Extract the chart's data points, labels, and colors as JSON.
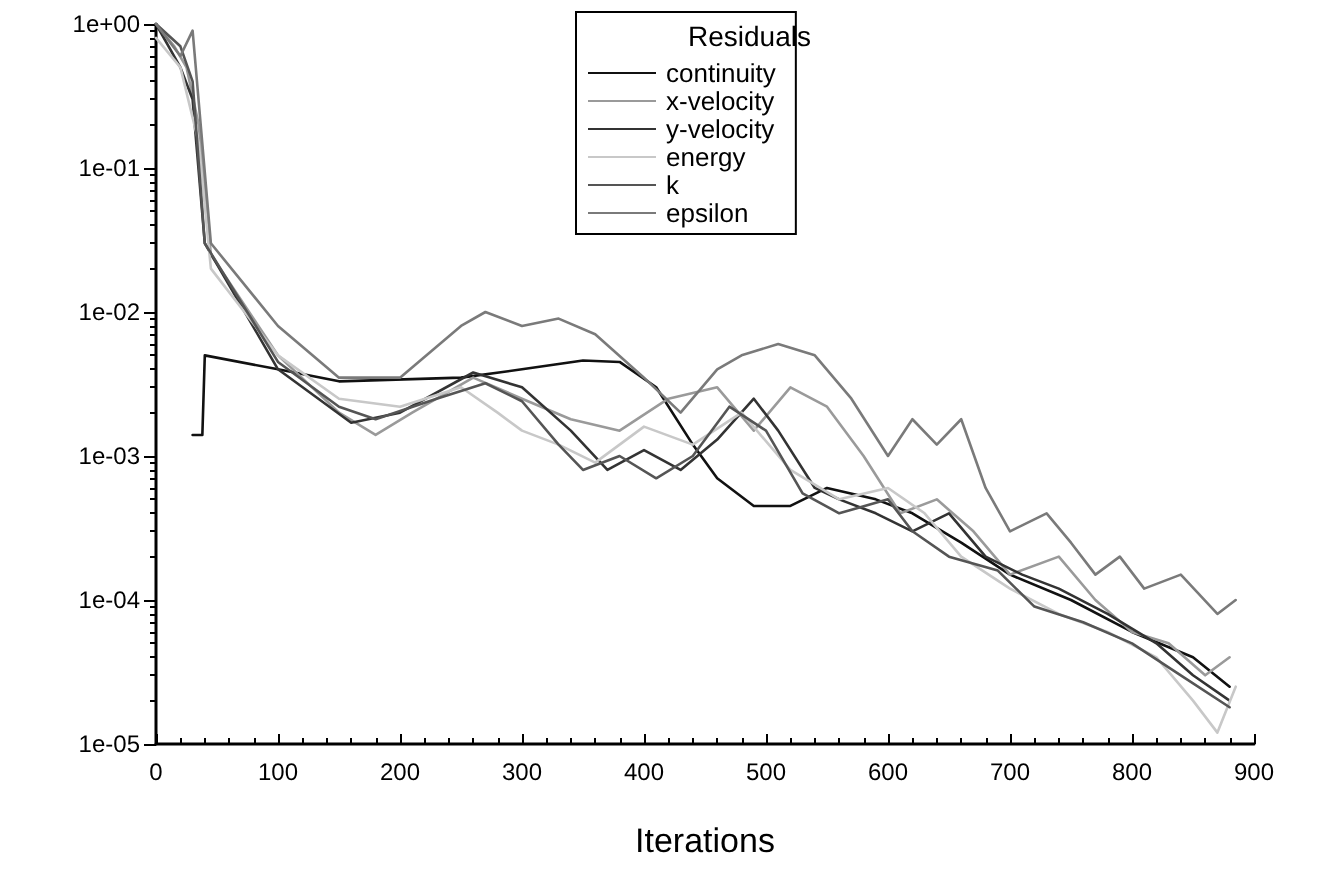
{
  "chart_data": {
    "type": "line",
    "xlabel": "Iterations",
    "legend_title": "Residuals",
    "legend": "top",
    "grid": false,
    "marker": "none",
    "log": "y",
    "xlim": [
      0,
      900
    ],
    "xticks": [
      0,
      100,
      200,
      300,
      400,
      500,
      600,
      700,
      800,
      900
    ],
    "ylim": [
      1e-05,
      1
    ],
    "yticks": [
      {
        "value": 1e-05,
        "label": "1e-05"
      },
      {
        "value": 0.0001,
        "label": "1e-04"
      },
      {
        "value": 0.001,
        "label": "1e-03"
      },
      {
        "value": 0.01,
        "label": "1e-02"
      },
      {
        "value": 0.1,
        "label": "1e-01"
      },
      {
        "value": 1,
        "label": "1e+00"
      }
    ],
    "series": [
      {
        "name": "continuity",
        "color": "#111111",
        "x": [
          30,
          38,
          40,
          100,
          150,
          250,
          300,
          350,
          380,
          410,
          440,
          460,
          490,
          520,
          550,
          590,
          620,
          660,
          700,
          750,
          800,
          850,
          880
        ],
        "values": [
          0.0014,
          0.0014,
          0.005,
          0.004,
          0.0033,
          0.0035,
          0.004,
          0.0046,
          0.0045,
          0.003,
          0.0012,
          0.0007,
          0.00045,
          0.00045,
          0.0006,
          0.0005,
          0.0004,
          0.00025,
          0.00015,
          0.0001,
          6e-05,
          4e-05,
          2.5e-05
        ]
      },
      {
        "name": "x-velocity",
        "color": "#9a9a9a",
        "x": [
          0,
          15,
          25,
          35,
          45,
          100,
          150,
          180,
          210,
          260,
          300,
          340,
          380,
          420,
          460,
          490,
          520,
          550,
          580,
          610,
          640,
          670,
          700,
          740,
          770,
          800,
          830,
          860,
          880
        ],
        "values": [
          1,
          0.7,
          0.5,
          0.2,
          0.025,
          0.005,
          0.002,
          0.0014,
          0.002,
          0.0035,
          0.0025,
          0.0018,
          0.0015,
          0.0025,
          0.003,
          0.0015,
          0.003,
          0.0022,
          0.001,
          0.0004,
          0.0005,
          0.0003,
          0.00015,
          0.0002,
          0.0001,
          6e-05,
          5e-05,
          3e-05,
          4e-05
        ]
      },
      {
        "name": "y-velocity",
        "color": "#333333",
        "x": [
          0,
          20,
          30,
          40,
          100,
          160,
          200,
          260,
          300,
          340,
          370,
          400,
          430,
          460,
          490,
          510,
          540,
          560,
          590,
          620,
          650,
          680,
          710,
          740,
          780,
          820,
          850,
          880
        ],
        "values": [
          1,
          0.5,
          0.3,
          0.03,
          0.004,
          0.0017,
          0.002,
          0.0038,
          0.003,
          0.0015,
          0.0008,
          0.0011,
          0.0008,
          0.0013,
          0.0025,
          0.0015,
          0.0006,
          0.0005,
          0.0004,
          0.0003,
          0.0004,
          0.0002,
          0.00015,
          0.00012,
          8e-05,
          5e-05,
          3e-05,
          2e-05
        ]
      },
      {
        "name": "energy",
        "color": "#c8c8c8",
        "x": [
          0,
          20,
          35,
          45,
          100,
          150,
          200,
          250,
          280,
          300,
          330,
          360,
          400,
          440,
          480,
          520,
          560,
          600,
          630,
          660,
          700,
          740,
          780,
          820,
          850,
          870,
          885
        ],
        "values": [
          0.8,
          0.5,
          0.15,
          0.02,
          0.005,
          0.0025,
          0.0022,
          0.003,
          0.002,
          0.0015,
          0.0012,
          0.0009,
          0.0016,
          0.0012,
          0.002,
          0.0008,
          0.0005,
          0.0006,
          0.0004,
          0.0002,
          0.00012,
          8e-05,
          6e-05,
          4e-05,
          2e-05,
          1.2e-05,
          2.5e-05
        ]
      },
      {
        "name": "k",
        "color": "#555555",
        "x": [
          0,
          20,
          30,
          40,
          100,
          150,
          180,
          230,
          270,
          300,
          330,
          350,
          380,
          410,
          440,
          470,
          500,
          530,
          560,
          600,
          620,
          650,
          690,
          720,
          760,
          800,
          840,
          880
        ],
        "values": [
          1,
          0.7,
          0.4,
          0.03,
          0.0045,
          0.0022,
          0.0018,
          0.0025,
          0.0032,
          0.0024,
          0.0012,
          0.0008,
          0.001,
          0.0007,
          0.001,
          0.0022,
          0.0015,
          0.00055,
          0.0004,
          0.0005,
          0.0003,
          0.0002,
          0.00016,
          9e-05,
          7e-05,
          5e-05,
          3e-05,
          1.8e-05
        ]
      },
      {
        "name": "epsilon",
        "color": "#7a7a7a",
        "x": [
          0,
          20,
          30,
          45,
          100,
          150,
          200,
          250,
          270,
          300,
          330,
          360,
          400,
          430,
          460,
          480,
          510,
          540,
          570,
          600,
          620,
          640,
          660,
          680,
          700,
          730,
          750,
          770,
          790,
          810,
          840,
          870,
          885
        ],
        "values": [
          1,
          0.6,
          0.9,
          0.03,
          0.008,
          0.0035,
          0.0035,
          0.008,
          0.01,
          0.008,
          0.009,
          0.007,
          0.0035,
          0.002,
          0.004,
          0.005,
          0.006,
          0.005,
          0.0025,
          0.001,
          0.0018,
          0.0012,
          0.0018,
          0.0006,
          0.0003,
          0.0004,
          0.00025,
          0.00015,
          0.0002,
          0.00012,
          0.00015,
          8e-05,
          0.0001
        ]
      }
    ]
  }
}
